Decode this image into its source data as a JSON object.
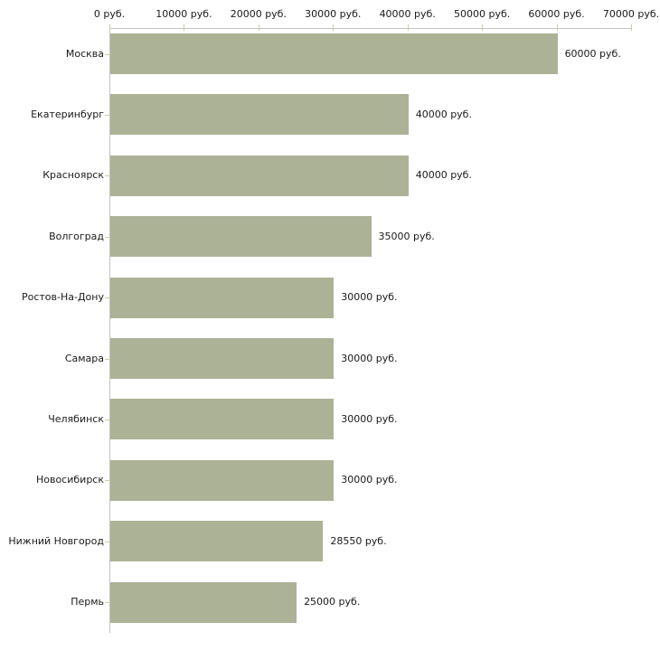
{
  "chart_data": {
    "type": "bar",
    "orientation": "horizontal",
    "title": "",
    "xlabel": "",
    "ylabel": "",
    "unit": "руб.",
    "categories": [
      "Москва",
      "Екатеринбург",
      "Красноярск",
      "Волгоград",
      "Ростов-На-Дону",
      "Самара",
      "Челябинск",
      "Новосибирск",
      "Нижний Новгород",
      "Пермь"
    ],
    "values": [
      60000,
      40000,
      40000,
      35000,
      30000,
      30000,
      30000,
      30000,
      28550,
      25000
    ],
    "value_labels": [
      "60000 руб.",
      "40000 руб.",
      "40000 руб.",
      "35000 руб.",
      "30000 руб.",
      "30000 руб.",
      "30000 руб.",
      "30000 руб.",
      "28550 руб.",
      "25000 руб."
    ],
    "xlim": [
      0,
      70000
    ],
    "x_ticks": [
      0,
      10000,
      20000,
      30000,
      40000,
      50000,
      60000,
      70000
    ],
    "x_tick_labels": [
      "0 руб.",
      "10000 руб.",
      "20000 руб.",
      "30000 руб.",
      "40000 руб.",
      "50000 руб.",
      "60000 руб.",
      "70000 руб."
    ],
    "grid": false,
    "legend": false,
    "axis_position": "top-left",
    "bar_color": "#acb296",
    "axis_line_color": "#c3c3c3",
    "tick_color": "#cdcd9e",
    "text_color": "#1a1a1a",
    "background": "#ffffff"
  }
}
